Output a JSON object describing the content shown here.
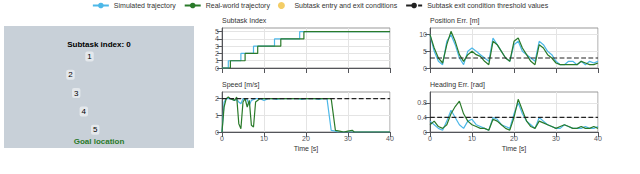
{
  "chart_data": {
    "type": "line",
    "legend": "top",
    "series": [
      {
        "name": "Simulated trajectory",
        "color": "#4db8e8",
        "type": "line",
        "line_style": "solid"
      },
      {
        "name": "Real-world trajectory",
        "color": "#2a7a2a",
        "type": "line",
        "line_style": "solid"
      },
      {
        "name": "Subtask entry and exit conditions",
        "color": "#f0c040",
        "type": "scatter",
        "marker": "circle"
      },
      {
        "name": "Subtask exit condition threshold values",
        "color": "#222222",
        "type": "line",
        "line_style": "dashed"
      }
    ],
    "image": {
      "color": "#c8d0d8",
      "annotations": [
        "Subtask index: 0",
        "1",
        "2",
        "3",
        "4",
        "5",
        {
          "text": "Goal location",
          "color": "#2a7a2a"
        }
      ]
    },
    "panels": [
      {
        "type": "step",
        "ylabel": "Subtask Index",
        "ylim": [
          0,
          5.5
        ],
        "yticks": [
          0,
          1,
          2,
          3,
          4,
          5
        ],
        "xlim": [
          0,
          40
        ],
        "xticks": [
          0,
          10,
          20,
          30,
          40
        ],
        "tick_labels": "y",
        "series": [
          {
            "name": "Simulated trajectory",
            "x": [
              0,
              1.5,
              1.5,
              4.5,
              4.5,
              7.5,
              7.5,
              10.5,
              10.5,
              12.5,
              12.5,
              15.5,
              15.5,
              18.5,
              18.5,
              20.5,
              20.5,
              23.5,
              23.5,
              26.5,
              26.5,
              28.5,
              28.5,
              40
            ],
            "values": [
              0,
              0,
              1,
              1,
              2,
              2,
              3,
              3,
              3,
              3,
              4,
              4,
              4,
              4,
              5,
              5,
              5,
              5,
              5,
              5,
              5,
              5,
              5,
              5
            ]
          },
          {
            "name": "Real-world trajectory",
            "x": [
              0,
              2.0,
              2.0,
              5.5,
              5.5,
              8.5,
              8.5,
              11.5,
              11.5,
              14.0,
              14.0,
              17.0,
              17.0,
              19.5,
              19.5,
              22.0,
              22.0,
              25.0,
              25.0,
              28.0,
              28.0,
              30.5,
              30.5,
              40
            ],
            "values": [
              0,
              0,
              1,
              1,
              2,
              2,
              3,
              3,
              3,
              3,
              4,
              4,
              4,
              4,
              5,
              5,
              5,
              5,
              5,
              5,
              5,
              5,
              5,
              5
            ]
          }
        ]
      },
      {
        "type": "line",
        "ylabel": "Speed [m/s]",
        "xlabel": "Time [s]",
        "ylim": [
          0,
          2.4
        ],
        "yticks": [
          0,
          1,
          2
        ],
        "xlim": [
          0,
          40
        ],
        "xticks": [
          0,
          10,
          20,
          30,
          40
        ],
        "threshold": 2.0,
        "series": [
          {
            "name": "Simulated trajectory",
            "x": [
              0,
              0.5,
              1.0,
              2.0,
              3.0,
              3.5,
              4.0,
              4.5,
              5.0,
              6.0,
              6.5,
              7.0,
              8.0,
              9.0,
              10.0,
              11.0,
              12.0,
              13.0,
              14.0,
              15.0,
              16.0,
              17.0,
              18.0,
              19.0,
              20.0,
              21.0,
              22.0,
              23.0,
              24.0,
              25.0,
              26.0,
              27.0,
              27.5,
              28.0,
              28.5,
              29.0,
              29.5,
              30.0,
              30.5,
              31.0,
              31.5,
              32.0,
              33.0,
              34.0,
              35.0,
              36.0,
              37.0,
              38.0,
              39.0,
              40.0
            ],
            "values": [
              0,
              1.8,
              2.0,
              2.0,
              1.9,
              1.95,
              1.8,
              1.7,
              2.0,
              1.95,
              1.6,
              1.9,
              2.0,
              2.0,
              1.9,
              2.0,
              2.0,
              1.95,
              2.0,
              2.0,
              2.0,
              2.0,
              2.0,
              1.95,
              2.0,
              2.0,
              2.0,
              1.95,
              2.0,
              2.0,
              0.1,
              0.05,
              0.0,
              0.0,
              0.0,
              0.0,
              0.0,
              0.0,
              0.0,
              0.0,
              0.0,
              0.0,
              0.0,
              0.0,
              0.0,
              0.0,
              0.0,
              0.0,
              0.0,
              0.0
            ]
          },
          {
            "name": "Real-world trajectory",
            "x": [
              0,
              0.5,
              1.0,
              1.5,
              2.0,
              3.0,
              3.5,
              4.0,
              4.5,
              5.0,
              5.5,
              6.0,
              6.5,
              7.0,
              7.5,
              8.0,
              9.0,
              10.0,
              11.0,
              12.0,
              13.0,
              14.0,
              15.0,
              16.0,
              17.0,
              18.0,
              19.0,
              20.0,
              21.0,
              22.0,
              23.0,
              24.0,
              25.0,
              26.0,
              27.0,
              28.0,
              29.0,
              30.0,
              31.0,
              31.5,
              32.0,
              32.5,
              33.0,
              34.0,
              35.0,
              36.0,
              37.0,
              38.0,
              39.0,
              40.0
            ],
            "values": [
              0,
              1.5,
              2.0,
              2.1,
              2.0,
              1.9,
              2.1,
              0.5,
              0.2,
              1.8,
              2.0,
              1.5,
              1.9,
              0.4,
              0.3,
              1.8,
              2.0,
              2.0,
              2.0,
              2.0,
              2.0,
              2.0,
              2.0,
              2.0,
              2.0,
              2.0,
              2.0,
              2.0,
              2.0,
              2.0,
              2.0,
              2.0,
              2.0,
              2.0,
              0.1,
              0.05,
              0.0,
              0.05,
              0.1,
              0.0,
              0.0,
              0.0,
              0.0,
              0.0,
              0.0,
              0.0,
              0.0,
              0.0,
              0.0,
              0.0
            ]
          }
        ]
      },
      {
        "type": "line",
        "ylabel": "Position Err. [m]",
        "ylim": [
          0,
          12
        ],
        "yticks": [
          0,
          5,
          10
        ],
        "xlim": [
          0,
          40
        ],
        "xticks": [
          0,
          10,
          20,
          30,
          40
        ],
        "tick_labels": "y",
        "threshold": 3.0,
        "series": [
          {
            "name": "Simulated trajectory",
            "x": [
              0,
              1,
              2,
              3,
              4,
              5,
              6,
              7,
              8,
              9,
              10,
              11,
              12,
              13,
              14,
              15,
              16,
              17,
              18,
              19,
              20,
              21,
              22,
              23,
              24,
              25,
              26,
              27,
              28,
              29,
              30,
              31,
              32,
              33,
              34,
              35,
              36,
              37,
              38,
              39,
              40
            ],
            "values": [
              10,
              5,
              2,
              1,
              8,
              10,
              7,
              3,
              1,
              5,
              6,
              5,
              4,
              3,
              2,
              9,
              7,
              5,
              3,
              2,
              7,
              8,
              5,
              4,
              3,
              2,
              8,
              7,
              5,
              4,
              2,
              1,
              1,
              2,
              2,
              1,
              2,
              1,
              2,
              1.5,
              2
            ]
          },
          {
            "name": "Real-world trajectory",
            "x": [
              0,
              1,
              2,
              3,
              4,
              5,
              6,
              7,
              8,
              9,
              10,
              11,
              12,
              13,
              14,
              15,
              16,
              17,
              18,
              19,
              20,
              21,
              22,
              23,
              24,
              25,
              26,
              27,
              28,
              29,
              30,
              31,
              32,
              33,
              34,
              35,
              36,
              37,
              38,
              39,
              40
            ],
            "values": [
              10,
              6,
              3,
              1.5,
              7,
              11,
              8,
              4,
              2,
              4,
              5,
              4,
              3.5,
              2,
              1,
              8,
              7,
              5,
              3,
              2,
              8,
              9,
              6,
              4,
              2,
              1,
              7,
              6,
              4,
              3,
              1.5,
              1,
              1,
              1,
              1,
              1,
              2,
              1.5,
              1,
              1,
              1.5
            ]
          }
        ]
      },
      {
        "type": "line",
        "ylabel": "Heading Err. [rad]",
        "xlabel": "Time [s]",
        "ylim": [
          0,
          1.1
        ],
        "yticks": [
          0,
          0.4,
          0.8
        ],
        "xlim": [
          0,
          40
        ],
        "xticks": [
          0,
          10,
          20,
          30,
          40
        ],
        "threshold": 0.4,
        "series": [
          {
            "name": "Simulated trajectory",
            "x": [
              0,
              1,
              2,
              3,
              4,
              5,
              6,
              7,
              8,
              9,
              10,
              11,
              12,
              13,
              14,
              15,
              16,
              17,
              18,
              19,
              20,
              21,
              22,
              23,
              24,
              25,
              26,
              27,
              28,
              29,
              30,
              31,
              32,
              33,
              34,
              35,
              36,
              37,
              38,
              39,
              40
            ],
            "values": [
              0.3,
              0.2,
              0.1,
              0.05,
              0.3,
              0.6,
              0.4,
              0.2,
              0.1,
              0.3,
              0.35,
              0.2,
              0.15,
              0.1,
              0.05,
              0.4,
              0.35,
              0.2,
              0.15,
              0.1,
              0.5,
              0.8,
              0.5,
              0.3,
              0.2,
              0.1,
              0.4,
              0.3,
              0.2,
              0.15,
              0.1,
              0.1,
              0.2,
              0.15,
              0.1,
              0.1,
              0.1,
              0.15,
              0.1,
              0.1,
              0.15
            ]
          },
          {
            "name": "Real-world trajectory",
            "x": [
              0,
              1,
              2,
              3,
              4,
              5,
              6,
              7,
              8,
              9,
              10,
              11,
              12,
              13,
              14,
              15,
              16,
              17,
              18,
              19,
              20,
              21,
              22,
              23,
              24,
              25,
              26,
              27,
              28,
              29,
              30,
              31,
              32,
              33,
              34,
              35,
              36,
              37,
              38,
              39,
              40
            ],
            "values": [
              0.2,
              0.3,
              0.15,
              0.1,
              0.2,
              0.5,
              0.7,
              0.85,
              0.5,
              0.3,
              0.2,
              0.15,
              0.1,
              0.1,
              0.05,
              0.35,
              0.3,
              0.2,
              0.1,
              0.05,
              0.4,
              0.9,
              0.6,
              0.3,
              0.15,
              0.1,
              0.3,
              0.25,
              0.2,
              0.15,
              0.1,
              0.15,
              0.2,
              0.15,
              0.1,
              0.1,
              0.15,
              0.1,
              0.1,
              0.15,
              0.1
            ]
          }
        ]
      }
    ]
  }
}
